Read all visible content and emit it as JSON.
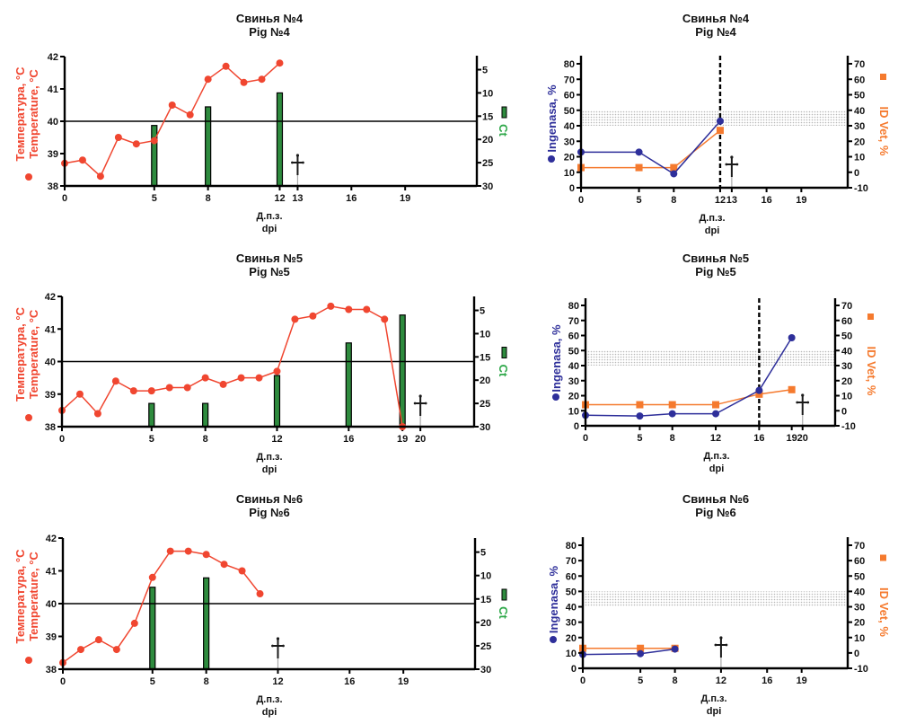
{
  "colors": {
    "temperature": "#f04630",
    "ct_bar": "#2e8b3e",
    "ct_label": "#2fa84a",
    "ingenasa": "#2e2f9a",
    "idvet": "#f57a2e",
    "axis": "#000000",
    "band": "#bdbdbd",
    "cross": "#1a1a1a"
  },
  "chart_data": [
    {
      "id": "pig4-temp",
      "type": "line+bar",
      "title": "Свинья №4",
      "subtitle": "Pig №4",
      "xlabel_ru": "Д.п.з.",
      "xlabel_en": "dpi",
      "ylabel_ru": "Температура, °C",
      "ylabel_en": "Temperature, °C",
      "y2label": "Ct",
      "x_ticks": [
        0,
        5,
        8,
        12,
        13,
        16,
        19
      ],
      "xlim": [
        0,
        23
      ],
      "ylim": [
        38,
        42
      ],
      "y_ticks": [
        38,
        39,
        40,
        41,
        42
      ],
      "y2lim_inverted": [
        2,
        30
      ],
      "y2_ticks": [
        5,
        10,
        15,
        20,
        25,
        30
      ],
      "threshold_temperature": 40,
      "temperature": {
        "x": [
          0,
          1,
          2,
          3,
          4,
          5,
          6,
          7,
          8,
          9,
          10,
          11,
          12
        ],
        "y": [
          38.7,
          38.8,
          38.3,
          39.5,
          39.3,
          39.4,
          40.5,
          40.2,
          41.3,
          41.7,
          41.2,
          41.3,
          41.8
        ]
      },
      "ct": {
        "x": [
          5,
          8,
          12
        ],
        "y": [
          17,
          13,
          10
        ]
      },
      "death_day": 13
    },
    {
      "id": "pig4-elisa",
      "type": "line",
      "title": "Свинья №4",
      "subtitle": "Pig №4",
      "xlabel_ru": "Д.п.з.",
      "xlabel_en": "dpi",
      "ylabel": "Ingenasa, %",
      "y2label": "ID Vet, %",
      "x_ticks": [
        0,
        5,
        8,
        12,
        13,
        16,
        19
      ],
      "xlim": [
        0,
        23
      ],
      "ylim": [
        0,
        85
      ],
      "y_ticks": [
        0,
        10,
        20,
        30,
        40,
        50,
        60,
        70,
        80
      ],
      "y2lim": [
        -10,
        75
      ],
      "y2_ticks": [
        -10,
        0,
        10,
        20,
        30,
        40,
        50,
        60,
        70
      ],
      "cutoff_band_ingenasa": [
        40,
        50
      ],
      "seroconversion_day": 12,
      "ingenasa": {
        "x": [
          0,
          5,
          8,
          12
        ],
        "y": [
          23,
          23,
          9,
          43
        ]
      },
      "idvet": {
        "x": [
          0,
          5,
          8,
          12
        ],
        "y": [
          3,
          3,
          3,
          27
        ]
      },
      "death_day": 13
    },
    {
      "id": "pig5-temp",
      "type": "line+bar",
      "title": "Свинья №5",
      "subtitle": "Pig №5",
      "xlabel_ru": "Д.п.з.",
      "xlabel_en": "dpi",
      "ylabel_ru": "Температура, °C",
      "ylabel_en": "Temperature, °C",
      "y2label": "Ct",
      "x_ticks": [
        0,
        5,
        8,
        12,
        16,
        19,
        20
      ],
      "xlim": [
        0,
        23
      ],
      "ylim": [
        38,
        42
      ],
      "y_ticks": [
        38,
        39,
        40,
        41,
        42
      ],
      "y2lim_inverted": [
        2,
        30
      ],
      "y2_ticks": [
        5,
        10,
        15,
        20,
        25,
        30
      ],
      "threshold_temperature": 40,
      "temperature": {
        "x": [
          0,
          1,
          2,
          3,
          4,
          5,
          6,
          7,
          8,
          9,
          10,
          11,
          12,
          13,
          14,
          15,
          16,
          17,
          18,
          19
        ],
        "y": [
          38.5,
          39.0,
          38.4,
          39.4,
          39.1,
          39.1,
          39.2,
          39.2,
          39.5,
          39.3,
          39.5,
          39.5,
          39.7,
          41.3,
          41.4,
          41.7,
          41.6,
          41.6,
          41.3,
          38.0
        ]
      },
      "ct": {
        "x": [
          5,
          8,
          12,
          16,
          19
        ],
        "y": [
          25,
          25,
          19,
          12,
          6
        ]
      },
      "death_day": 20
    },
    {
      "id": "pig5-elisa",
      "type": "line",
      "title": "Свинья №5",
      "subtitle": "Pig №5",
      "xlabel_ru": "Д.п.з.",
      "xlabel_en": "dpi",
      "ylabel": "Ingenasa, %",
      "y2label": "ID Vet, %",
      "x_ticks": [
        0,
        5,
        8,
        12,
        16,
        19,
        20
      ],
      "xlim": [
        0,
        23
      ],
      "ylim": [
        0,
        85
      ],
      "y_ticks": [
        0,
        10,
        20,
        30,
        40,
        50,
        60,
        70,
        80
      ],
      "y2lim": [
        -10,
        75
      ],
      "y2_ticks": [
        -10,
        0,
        10,
        20,
        30,
        40,
        50,
        60,
        70
      ],
      "cutoff_band_ingenasa": [
        40,
        50
      ],
      "seroconversion_day": 16,
      "ingenasa": {
        "x": [
          0,
          5,
          8,
          12,
          16,
          19
        ],
        "y": [
          7,
          6.5,
          8,
          8,
          23.5,
          58.5
        ]
      },
      "idvet": {
        "x": [
          0,
          5,
          8,
          12,
          16,
          19
        ],
        "y": [
          4,
          4,
          4,
          4,
          11,
          14
        ]
      },
      "death_day": 20
    },
    {
      "id": "pig6-temp",
      "type": "line+bar",
      "title": "Свинья №6",
      "subtitle": "Pig №6",
      "xlabel_ru": "Д.п.з.",
      "xlabel_en": "dpi",
      "ylabel_ru": "Температура, °C",
      "ylabel_en": "Temperature, °C",
      "y2label": "Ct",
      "x_ticks": [
        0,
        5,
        8,
        12,
        16,
        19
      ],
      "xlim": [
        0,
        23
      ],
      "ylim": [
        38,
        42
      ],
      "y_ticks": [
        38,
        39,
        40,
        41,
        42
      ],
      "y2lim_inverted": [
        2,
        30
      ],
      "y2_ticks": [
        5,
        10,
        15,
        20,
        25,
        30
      ],
      "threshold_temperature": 40,
      "temperature": {
        "x": [
          0,
          1,
          2,
          3,
          4,
          5,
          6,
          7,
          8,
          9,
          10,
          11
        ],
        "y": [
          38.2,
          38.6,
          38.9,
          38.6,
          39.4,
          40.8,
          41.6,
          41.6,
          41.5,
          41.2,
          41.0,
          40.3
        ]
      },
      "ct": {
        "x": [
          5,
          8
        ],
        "y": [
          12.5,
          10.5
        ]
      },
      "death_day": 12
    },
    {
      "id": "pig6-elisa",
      "type": "line",
      "title": "Свинья №6",
      "subtitle": "Pig №6",
      "xlabel_ru": "Д.п.з.",
      "xlabel_en": "dpi",
      "ylabel": "Ingenasa, %",
      "y2label": "ID Vet, %",
      "x_ticks": [
        0,
        5,
        8,
        12,
        16,
        19
      ],
      "xlim": [
        0,
        23
      ],
      "ylim": [
        0,
        85
      ],
      "y_ticks": [
        0,
        10,
        20,
        30,
        40,
        50,
        60,
        70,
        80
      ],
      "y2lim": [
        -10,
        75
      ],
      "y2_ticks": [
        -10,
        0,
        10,
        20,
        30,
        40,
        50,
        60,
        70
      ],
      "cutoff_band_ingenasa": [
        40,
        50
      ],
      "seroconversion_day": null,
      "ingenasa": {
        "x": [
          0,
          5,
          8
        ],
        "y": [
          9,
          9.5,
          12.5
        ]
      },
      "idvet": {
        "x": [
          0,
          5,
          8
        ],
        "y": [
          3,
          3,
          3
        ]
      },
      "death_day": 12
    }
  ]
}
